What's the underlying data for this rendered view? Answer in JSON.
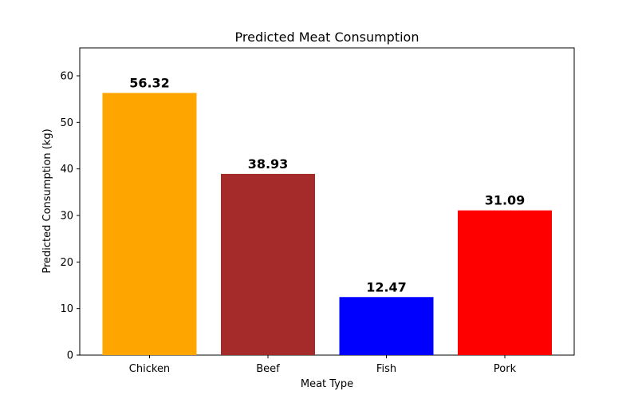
{
  "chart_data": {
    "type": "bar",
    "title": "Predicted Meat Consumption",
    "xlabel": "Meat Type",
    "ylabel": "Predicted Consumption (kg)",
    "categories": [
      "Chicken",
      "Beef",
      "Fish",
      "Pork"
    ],
    "values": [
      56.32,
      38.93,
      12.47,
      31.09
    ],
    "data_labels": [
      "56.32",
      "38.93",
      "12.47",
      "31.09"
    ],
    "colors": [
      "#ffa500",
      "#a52a2a",
      "#0000ff",
      "#ff0000"
    ],
    "ylim": [
      0,
      66
    ],
    "yticks": [
      0,
      10,
      20,
      30,
      40,
      50,
      60
    ],
    "ytick_labels": [
      "0",
      "10",
      "20",
      "30",
      "40",
      "50",
      "60"
    ],
    "grid": false,
    "legend": "none"
  }
}
